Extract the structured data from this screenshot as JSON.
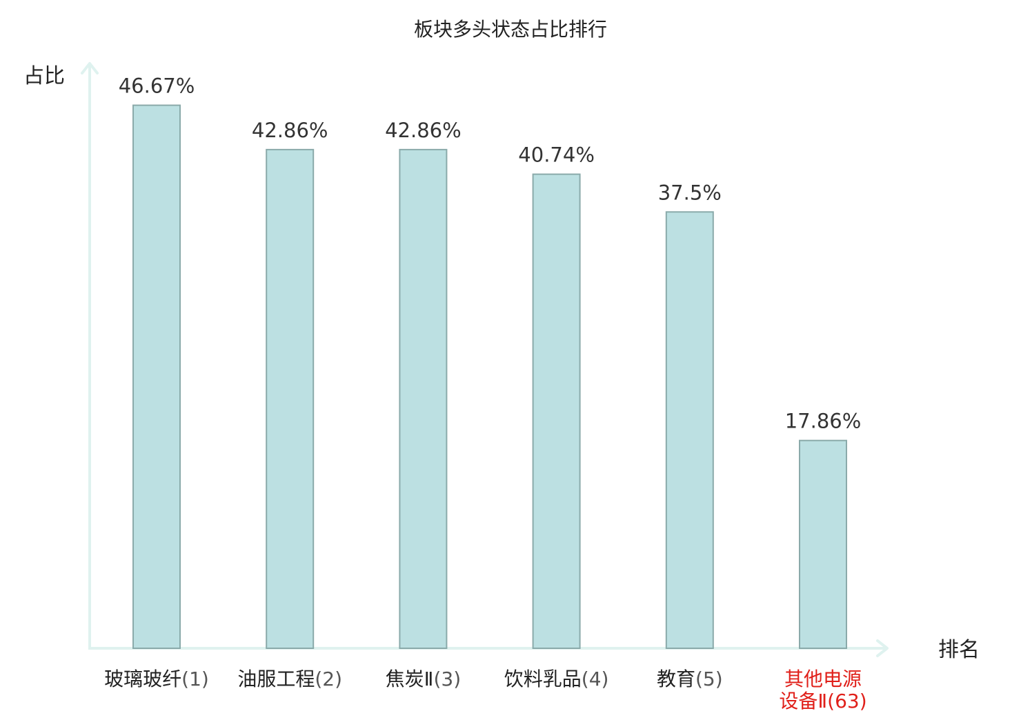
{
  "chart_data": {
    "type": "bar",
    "title": "板块多头状态占比排行",
    "ylabel": "占比",
    "xlabel": "排名",
    "categories": [
      {
        "name": "玻璃玻纤",
        "rank": "(1)",
        "highlight": false
      },
      {
        "name": "油服工程",
        "rank": "(2)",
        "highlight": false
      },
      {
        "name": "焦炭Ⅱ",
        "rank": "(3)",
        "highlight": false
      },
      {
        "name": "饮料乳品",
        "rank": "(4)",
        "highlight": false
      },
      {
        "name": "教育",
        "rank": "(5)",
        "highlight": false
      },
      {
        "name": "其他电源",
        "name_line2": "设备Ⅱ",
        "rank": "(63)",
        "highlight": true
      }
    ],
    "values": [
      46.67,
      42.86,
      42.86,
      40.74,
      37.5,
      17.86
    ],
    "value_labels": [
      "46.67%",
      "42.86%",
      "42.86%",
      "40.74%",
      "37.5%",
      "17.86%"
    ],
    "ylim": [
      0,
      47
    ],
    "grid": false,
    "colors": {
      "bar_fill": "#bce0e2",
      "bar_stroke": "#8aaaaa",
      "axis": "#dff2ef",
      "text": "#333333",
      "rank_text": "#555555",
      "highlight_text": "#e0201a"
    }
  }
}
